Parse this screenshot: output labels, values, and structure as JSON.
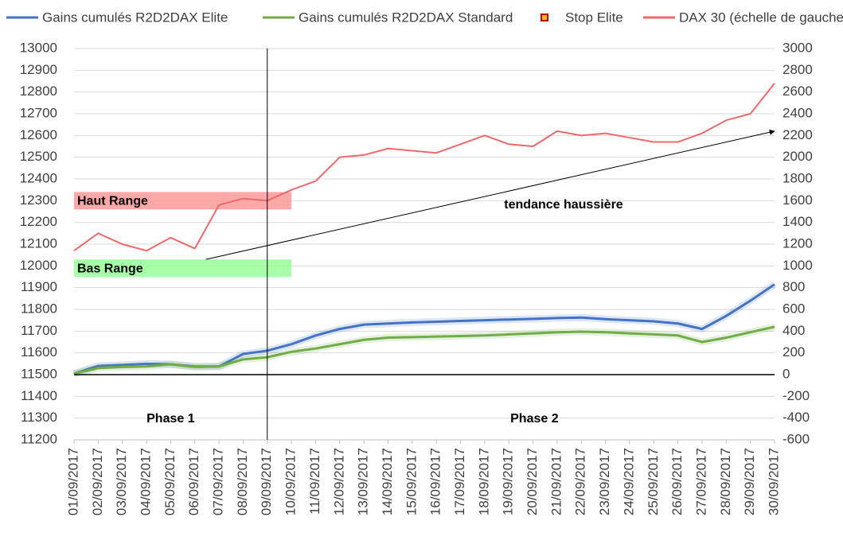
{
  "chart_data": {
    "type": "line",
    "categories": [
      "01/09/2017",
      "02/09/2017",
      "03/09/2017",
      "04/09/2017",
      "05/09/2017",
      "06/09/2017",
      "07/09/2017",
      "08/09/2017",
      "09/09/2017",
      "10/09/2017",
      "11/09/2017",
      "12/09/2017",
      "13/09/2017",
      "14/09/2017",
      "15/09/2017",
      "16/09/2017",
      "17/09/2017",
      "18/09/2017",
      "19/09/2017",
      "20/09/2017",
      "21/09/2017",
      "22/09/2017",
      "23/09/2017",
      "24/09/2017",
      "25/09/2017",
      "26/09/2017",
      "27/09/2017",
      "28/09/2017",
      "29/09/2017",
      "30/09/2017"
    ],
    "series": [
      {
        "name": "Gains cumulés R2D2DAX Elite",
        "color": "#4472c4",
        "axis": "y2",
        "glow": true,
        "values": [
          10,
          80,
          90,
          100,
          95,
          75,
          75,
          190,
          220,
          280,
          360,
          420,
          460,
          470,
          480,
          487,
          494,
          500,
          507,
          513,
          520,
          525,
          510,
          500,
          490,
          470,
          420,
          540,
          680,
          830
        ]
      },
      {
        "name": "Gains cumulés R2D2DAX Standard",
        "color": "#70ad47",
        "axis": "y2",
        "glow": true,
        "values": [
          10,
          60,
          70,
          75,
          95,
          70,
          75,
          140,
          160,
          210,
          240,
          280,
          320,
          340,
          345,
          350,
          355,
          360,
          370,
          380,
          390,
          395,
          390,
          380,
          370,
          360,
          300,
          340,
          390,
          440
        ]
      },
      {
        "name": "Stop Elite",
        "color": "#c00000",
        "fill": "#ffc000",
        "marker": "square",
        "axis": "y2",
        "values": [
          null,
          null,
          null,
          null,
          null,
          null,
          null,
          null,
          null,
          null,
          null,
          null,
          null,
          null,
          null,
          null,
          null,
          null,
          null,
          null,
          null,
          null,
          null,
          null,
          null,
          null,
          null,
          null,
          null,
          null
        ]
      },
      {
        "name": "DAX 30 (échelle de gauche)",
        "color": "#ee6a6a",
        "axis": "y",
        "values": [
          12070,
          12150,
          12100,
          12070,
          12130,
          12080,
          12280,
          12310,
          12300,
          12350,
          12390,
          12500,
          12510,
          12540,
          12530,
          12520,
          12560,
          12600,
          12560,
          12550,
          12620,
          12600,
          12610,
          12590,
          12570,
          12570,
          12610,
          12670,
          12700,
          12840
        ]
      }
    ],
    "ylim": [
      11200,
      13000
    ],
    "yticks": [
      11200,
      11300,
      11400,
      11500,
      11600,
      11700,
      11800,
      11900,
      12000,
      12100,
      12200,
      12300,
      12400,
      12500,
      12600,
      12700,
      12800,
      12900,
      13000
    ],
    "y2lim": [
      -600,
      3000
    ],
    "y2ticks": [
      -600,
      -400,
      -200,
      0,
      200,
      400,
      600,
      800,
      1000,
      1200,
      1400,
      1600,
      1800,
      2000,
      2200,
      2400,
      2600,
      2800,
      3000
    ],
    "grid": true,
    "legend": "top",
    "bands": [
      {
        "label": "Haut Range",
        "range": [
          12260,
          12340
        ],
        "span": [
          "01/09/2017",
          "10/09/2017"
        ],
        "color": "#ff9999"
      },
      {
        "label": "Bas Range",
        "range": [
          11950,
          12030
        ],
        "span": [
          "01/09/2017",
          "10/09/2017"
        ],
        "color": "#99ff99"
      }
    ],
    "divider": "09/09/2017",
    "phases": [
      "Phase 1",
      "Phase 2"
    ],
    "trend": {
      "label": "tendance haussière",
      "from": [
        "06/09/2017",
        12030
      ],
      "to": [
        "30/09/2017",
        12620
      ]
    }
  }
}
